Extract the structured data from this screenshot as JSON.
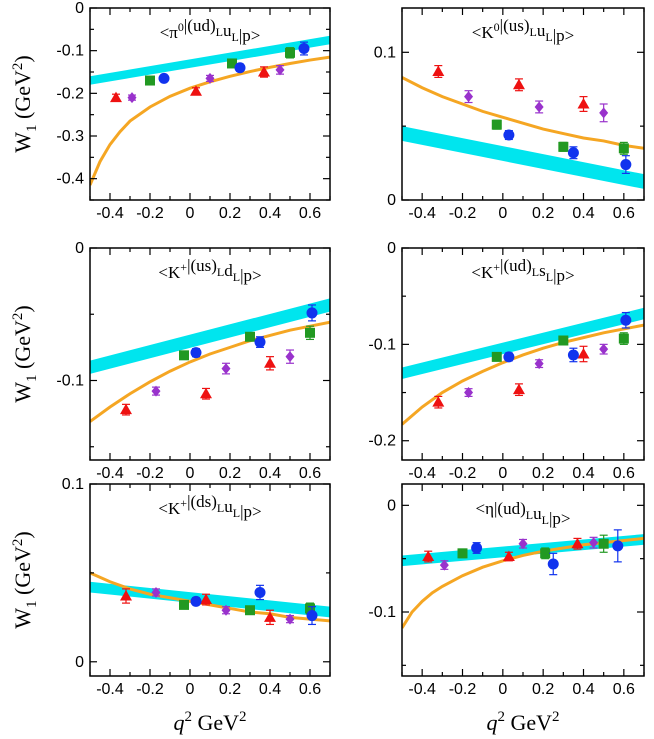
{
  "figure": {
    "ylabel": {
      "base": "W",
      "sub": "1",
      "unit_open": " (GeV",
      "unit_sup": "2",
      "unit_close": ")"
    },
    "xlabel": {
      "q": "q",
      "q_sup": "2",
      "unit": " GeV",
      "unit_sup": "2"
    }
  },
  "colors": {
    "band": "#00e5ee",
    "fit": "#f5a623",
    "triangle": "#ee1111",
    "diamond": "#9932cc",
    "square": "#229922",
    "circle": "#1133ee"
  },
  "chart_data": [
    {
      "type": "scatter",
      "title_parts": [
        [
          "<",
          ""
        ],
        [
          "π",
          ""
        ],
        [
          "0",
          "sup"
        ],
        [
          "|(ud)",
          ""
        ],
        [
          "L",
          "sub"
        ],
        [
          "u",
          ""
        ],
        [
          "L",
          "sub"
        ],
        [
          "|p>",
          ""
        ]
      ],
      "xlim": [
        -0.5,
        0.7
      ],
      "ylim": [
        -0.45,
        0
      ],
      "xticks": [
        -0.4,
        -0.2,
        0,
        0.2,
        0.4,
        0.6
      ],
      "yticks": [
        0,
        -0.1,
        -0.2,
        -0.3,
        -0.4
      ],
      "ytick_labels": [
        "0",
        "-0.1",
        "-0.2",
        "-0.3",
        "-0.4"
      ],
      "band": {
        "x": [
          -0.5,
          0.7
        ],
        "center": [
          -0.17,
          -0.075
        ],
        "halfwidth": 0.01
      },
      "fit": {
        "x": [
          -0.5,
          -0.45,
          -0.4,
          -0.35,
          -0.3,
          -0.2,
          -0.1,
          0,
          0.1,
          0.2,
          0.3,
          0.4,
          0.5,
          0.6,
          0.7
        ],
        "y": [
          -0.415,
          -0.36,
          -0.32,
          -0.29,
          -0.265,
          -0.232,
          -0.207,
          -0.188,
          -0.173,
          -0.16,
          -0.149,
          -0.139,
          -0.13,
          -0.122,
          -0.115
        ]
      },
      "series": [
        {
          "name": "triangle",
          "x": [
            -0.37,
            0.03,
            0.37
          ],
          "y": [
            -0.21,
            -0.195,
            -0.15
          ],
          "err": [
            0.008,
            0.008,
            0.012
          ]
        },
        {
          "name": "diamond",
          "x": [
            -0.29,
            0.1,
            0.45
          ],
          "y": [
            -0.21,
            -0.165,
            -0.145
          ],
          "err": [
            0.006,
            0.007,
            0.01
          ]
        },
        {
          "name": "square",
          "x": [
            -0.2,
            0.21,
            0.5
          ],
          "y": [
            -0.17,
            -0.13,
            -0.105
          ],
          "err": [
            0.007,
            0.008,
            0.012
          ]
        },
        {
          "name": "circle",
          "x": [
            -0.13,
            0.25,
            0.57
          ],
          "y": [
            -0.165,
            -0.14,
            -0.095
          ],
          "err": [
            0.007,
            0.008,
            0.015
          ]
        }
      ]
    },
    {
      "type": "scatter",
      "title_parts": [
        [
          "<",
          ""
        ],
        [
          "K",
          ""
        ],
        [
          "0",
          "sup"
        ],
        [
          "|(us)",
          ""
        ],
        [
          "L",
          "sub"
        ],
        [
          "u",
          ""
        ],
        [
          "L",
          "sub"
        ],
        [
          "|p>",
          ""
        ]
      ],
      "xlim": [
        -0.5,
        0.7
      ],
      "ylim": [
        0,
        0.13
      ],
      "xticks": [
        -0.4,
        -0.2,
        0,
        0.2,
        0.4,
        0.6
      ],
      "yticks": [
        0,
        0.1
      ],
      "ytick_labels": [
        "0",
        "0.1"
      ],
      "band": {
        "x": [
          -0.5,
          0.7
        ],
        "center": [
          0.045,
          0.0125
        ],
        "halfwidth": 0.005
      },
      "fit": {
        "x": [
          -0.5,
          -0.4,
          -0.3,
          -0.2,
          -0.1,
          0,
          0.1,
          0.2,
          0.3,
          0.4,
          0.5,
          0.6,
          0.7
        ],
        "y": [
          0.083,
          0.076,
          0.07,
          0.065,
          0.06,
          0.056,
          0.052,
          0.048,
          0.045,
          0.042,
          0.04,
          0.037,
          0.035
        ]
      },
      "series": [
        {
          "name": "triangle",
          "x": [
            -0.32,
            0.08,
            0.4
          ],
          "y": [
            0.087,
            0.078,
            0.065
          ],
          "err": [
            0.004,
            0.004,
            0.005
          ]
        },
        {
          "name": "diamond",
          "x": [
            -0.17,
            0.18,
            0.5
          ],
          "y": [
            0.07,
            0.063,
            0.059
          ],
          "err": [
            0.004,
            0.004,
            0.006
          ]
        },
        {
          "name": "square",
          "x": [
            -0.03,
            0.3,
            0.6
          ],
          "y": [
            0.051,
            0.036,
            0.035
          ],
          "err": [
            0.003,
            0.003,
            0.004
          ]
        },
        {
          "name": "circle",
          "x": [
            0.03,
            0.35,
            0.61
          ],
          "y": [
            0.044,
            0.032,
            0.024
          ],
          "err": [
            0.003,
            0.004,
            0.006
          ]
        }
      ]
    },
    {
      "type": "scatter",
      "title_parts": [
        [
          "<",
          ""
        ],
        [
          "K",
          ""
        ],
        [
          "+",
          "sup"
        ],
        [
          "|(us)",
          ""
        ],
        [
          "L",
          "sub"
        ],
        [
          "d",
          ""
        ],
        [
          "L",
          "sub"
        ],
        [
          "|p>",
          ""
        ]
      ],
      "xlim": [
        -0.5,
        0.7
      ],
      "ylim": [
        -0.16,
        0
      ],
      "xticks": [
        -0.4,
        -0.2,
        0,
        0.2,
        0.4,
        0.6
      ],
      "yticks": [
        0,
        -0.1
      ],
      "ytick_labels": [
        "0",
        "-0.1"
      ],
      "band": {
        "x": [
          -0.5,
          0.7
        ],
        "center": [
          -0.09,
          -0.043
        ],
        "halfwidth": 0.005
      },
      "fit": {
        "x": [
          -0.5,
          -0.4,
          -0.3,
          -0.2,
          -0.1,
          0,
          0.1,
          0.2,
          0.3,
          0.4,
          0.5,
          0.6,
          0.7
        ],
        "y": [
          -0.131,
          -0.12,
          -0.11,
          -0.101,
          -0.093,
          -0.086,
          -0.08,
          -0.075,
          -0.07,
          -0.066,
          -0.062,
          -0.059,
          -0.056
        ]
      },
      "series": [
        {
          "name": "triangle",
          "x": [
            -0.32,
            0.08,
            0.4
          ],
          "y": [
            -0.122,
            -0.11,
            -0.087
          ],
          "err": [
            0.004,
            0.004,
            0.005
          ]
        },
        {
          "name": "diamond",
          "x": [
            -0.17,
            0.18,
            0.5
          ],
          "y": [
            -0.108,
            -0.091,
            -0.082
          ],
          "err": [
            0.003,
            0.004,
            0.005
          ]
        },
        {
          "name": "square",
          "x": [
            -0.03,
            0.3,
            0.6
          ],
          "y": [
            -0.081,
            -0.067,
            -0.064
          ],
          "err": [
            0.003,
            0.003,
            0.005
          ]
        },
        {
          "name": "circle",
          "x": [
            0.03,
            0.35,
            0.61
          ],
          "y": [
            -0.079,
            -0.071,
            -0.049
          ],
          "err": [
            0.003,
            0.004,
            0.006
          ]
        }
      ]
    },
    {
      "type": "scatter",
      "title_parts": [
        [
          "<",
          ""
        ],
        [
          "K",
          ""
        ],
        [
          "+",
          "sup"
        ],
        [
          "|(ud)",
          ""
        ],
        [
          "L",
          "sub"
        ],
        [
          "s",
          ""
        ],
        [
          "L",
          "sub"
        ],
        [
          "|p>",
          ""
        ]
      ],
      "xlim": [
        -0.5,
        0.7
      ],
      "ylim": [
        -0.22,
        0
      ],
      "xticks": [
        -0.4,
        -0.2,
        0,
        0.2,
        0.4,
        0.6
      ],
      "yticks": [
        0,
        -0.1,
        -0.2
      ],
      "ytick_labels": [
        "0",
        "-0.1",
        "-0.2"
      ],
      "band": {
        "x": [
          -0.5,
          0.7
        ],
        "center": [
          -0.13,
          -0.068
        ],
        "halfwidth": 0.006
      },
      "fit": {
        "x": [
          -0.5,
          -0.4,
          -0.3,
          -0.2,
          -0.1,
          0,
          0.1,
          0.2,
          0.3,
          0.4,
          0.5,
          0.6,
          0.7
        ],
        "y": [
          -0.183,
          -0.165,
          -0.15,
          -0.138,
          -0.128,
          -0.119,
          -0.111,
          -0.104,
          -0.098,
          -0.093,
          -0.088,
          -0.084,
          -0.08
        ]
      },
      "series": [
        {
          "name": "triangle",
          "x": [
            -0.32,
            0.08,
            0.4
          ],
          "y": [
            -0.16,
            -0.147,
            -0.11
          ],
          "err": [
            0.006,
            0.006,
            0.008
          ]
        },
        {
          "name": "diamond",
          "x": [
            -0.17,
            0.18,
            0.5
          ],
          "y": [
            -0.15,
            -0.12,
            -0.105
          ],
          "err": [
            0.004,
            0.004,
            0.005
          ]
        },
        {
          "name": "square",
          "x": [
            -0.03,
            0.3,
            0.6
          ],
          "y": [
            -0.113,
            -0.096,
            -0.094
          ],
          "err": [
            0.004,
            0.004,
            0.006
          ]
        },
        {
          "name": "circle",
          "x": [
            0.03,
            0.35,
            0.61
          ],
          "y": [
            -0.113,
            -0.111,
            -0.075
          ],
          "err": [
            0.004,
            0.007,
            0.008
          ]
        }
      ]
    },
    {
      "type": "scatter",
      "title_parts": [
        [
          "<",
          ""
        ],
        [
          "K",
          ""
        ],
        [
          "+",
          "sup"
        ],
        [
          "|(ds)",
          ""
        ],
        [
          "L",
          "sub"
        ],
        [
          "u",
          ""
        ],
        [
          "L",
          "sub"
        ],
        [
          "|p>",
          ""
        ]
      ],
      "xlim": [
        -0.5,
        0.7
      ],
      "ylim": [
        -0.008,
        0.1
      ],
      "xticks": [
        -0.4,
        -0.2,
        0,
        0.2,
        0.4,
        0.6
      ],
      "yticks": [
        0,
        0.1
      ],
      "ytick_labels": [
        "0",
        "0.1"
      ],
      "band": {
        "x": [
          -0.5,
          0.7
        ],
        "center": [
          0.042,
          0.028
        ],
        "halfwidth": 0.003
      },
      "fit": {
        "x": [
          -0.5,
          -0.4,
          -0.3,
          -0.2,
          -0.1,
          0,
          0.1,
          0.2,
          0.3,
          0.4,
          0.5,
          0.6,
          0.7
        ],
        "y": [
          0.05,
          0.045,
          0.041,
          0.038,
          0.036,
          0.034,
          0.032,
          0.03,
          0.028,
          0.027,
          0.025,
          0.024,
          0.023
        ]
      },
      "series": [
        {
          "name": "triangle",
          "x": [
            -0.32,
            0.08,
            0.4
          ],
          "y": [
            0.037,
            0.035,
            0.025
          ],
          "err": [
            0.004,
            0.003,
            0.004
          ]
        },
        {
          "name": "diamond",
          "x": [
            -0.17,
            0.18,
            0.5
          ],
          "y": [
            0.039,
            0.029,
            0.024
          ],
          "err": [
            0.002,
            0.002,
            0.002
          ]
        },
        {
          "name": "square",
          "x": [
            -0.03,
            0.3,
            0.6
          ],
          "y": [
            0.032,
            0.029,
            0.03
          ],
          "err": [
            0.002,
            0.002,
            0.003
          ]
        },
        {
          "name": "circle",
          "x": [
            0.03,
            0.35,
            0.61
          ],
          "y": [
            0.034,
            0.039,
            0.026
          ],
          "err": [
            0.002,
            0.004,
            0.005
          ]
        }
      ]
    },
    {
      "type": "scatter",
      "title_parts": [
        [
          "<",
          ""
        ],
        [
          "η",
          ""
        ],
        [
          "|(ud)",
          ""
        ],
        [
          "L",
          "sub"
        ],
        [
          "u",
          ""
        ],
        [
          "L",
          "sub"
        ],
        [
          "|p>",
          ""
        ]
      ],
      "xlim": [
        -0.5,
        0.7
      ],
      "ylim": [
        -0.16,
        0.02
      ],
      "xticks": [
        -0.4,
        -0.2,
        0,
        0.2,
        0.4,
        0.6
      ],
      "yticks": [
        0,
        -0.1
      ],
      "ytick_labels": [
        "0",
        "-0.1"
      ],
      "band": {
        "x": [
          -0.5,
          0.7
        ],
        "center": [
          -0.052,
          -0.032
        ],
        "halfwidth": 0.005
      },
      "fit": {
        "x": [
          -0.5,
          -0.45,
          -0.4,
          -0.35,
          -0.3,
          -0.2,
          -0.1,
          0,
          0.1,
          0.2,
          0.3,
          0.4,
          0.5,
          0.6,
          0.7
        ],
        "y": [
          -0.115,
          -0.1,
          -0.09,
          -0.082,
          -0.076,
          -0.066,
          -0.058,
          -0.052,
          -0.047,
          -0.043,
          -0.04,
          -0.037,
          -0.035,
          -0.033,
          -0.031
        ]
      },
      "series": [
        {
          "name": "triangle",
          "x": [
            -0.37,
            0.03,
            0.37
          ],
          "y": [
            -0.048,
            -0.048,
            -0.036
          ],
          "err": [
            0.005,
            0.004,
            0.005
          ]
        },
        {
          "name": "diamond",
          "x": [
            -0.29,
            0.1,
            0.45
          ],
          "y": [
            -0.056,
            -0.036,
            -0.035
          ],
          "err": [
            0.004,
            0.004,
            0.005
          ]
        },
        {
          "name": "square",
          "x": [
            -0.2,
            0.21,
            0.5
          ],
          "y": [
            -0.045,
            -0.045,
            -0.036
          ],
          "err": [
            0.004,
            0.005,
            0.008
          ]
        },
        {
          "name": "circle",
          "x": [
            -0.13,
            0.25,
            0.57
          ],
          "y": [
            -0.04,
            -0.055,
            -0.038
          ],
          "err": [
            0.005,
            0.01,
            0.015
          ]
        }
      ]
    }
  ]
}
